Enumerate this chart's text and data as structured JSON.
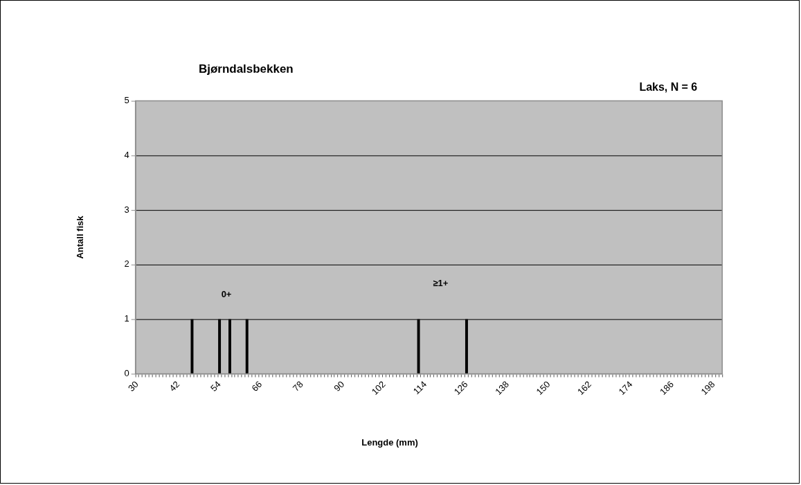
{
  "chart_data": {
    "type": "bar",
    "title": "Bjørndalsbekken",
    "subtitle": "Laks, N = 6",
    "xlabel": "Lengde (mm)",
    "ylabel": "Antall fisk",
    "categories": [
      "30",
      null,
      null,
      null,
      null,
      null,
      null,
      null,
      null,
      null,
      null,
      null,
      "42",
      null,
      null,
      null,
      null,
      null,
      null,
      null,
      null,
      null,
      null,
      null,
      "54",
      null,
      null,
      null,
      null,
      null,
      null,
      null,
      null,
      null,
      null,
      null,
      "66",
      null,
      null,
      null,
      null,
      null,
      null,
      null,
      null,
      null,
      null,
      null,
      "78",
      null,
      null,
      null,
      null,
      null,
      null,
      null,
      null,
      null,
      null,
      null,
      "90",
      null,
      null,
      null,
      null,
      null,
      null,
      null,
      null,
      null,
      null,
      null,
      "102",
      null,
      null,
      null,
      null,
      null,
      null,
      null,
      null,
      null,
      null,
      null,
      "114",
      null,
      null,
      null,
      null,
      null,
      null,
      null,
      null,
      null,
      null,
      null,
      "126",
      null,
      null,
      null,
      null,
      null,
      null,
      null,
      null,
      null,
      null,
      null,
      "138",
      null,
      null,
      null,
      null,
      null,
      null,
      null,
      null,
      null,
      null,
      null,
      "150",
      null,
      null,
      null,
      null,
      null,
      null,
      null,
      null,
      null,
      null,
      null,
      "162",
      null,
      null,
      null,
      null,
      null,
      null,
      null,
      null,
      null,
      null,
      null,
      "174",
      null,
      null,
      null,
      null,
      null,
      null,
      null,
      null,
      null,
      null,
      null,
      "186",
      null,
      null,
      null,
      null,
      null,
      null,
      null,
      null,
      null,
      null,
      null,
      "198",
      null,
      null
    ],
    "values": [
      0,
      0,
      0,
      0,
      0,
      0,
      0,
      0,
      0,
      0,
      0,
      0,
      0,
      0,
      0,
      0,
      1,
      0,
      0,
      0,
      0,
      0,
      0,
      0,
      1,
      0,
      0,
      1,
      0,
      0,
      0,
      0,
      1,
      0,
      0,
      0,
      0,
      0,
      0,
      0,
      0,
      0,
      0,
      0,
      0,
      0,
      0,
      0,
      0,
      0,
      0,
      0,
      0,
      0,
      0,
      0,
      0,
      0,
      0,
      0,
      0,
      0,
      0,
      0,
      0,
      0,
      0,
      0,
      0,
      0,
      0,
      0,
      0,
      0,
      0,
      0,
      0,
      0,
      0,
      0,
      0,
      0,
      1,
      0,
      0,
      0,
      0,
      0,
      0,
      0,
      0,
      0,
      0,
      0,
      0,
      0,
      1,
      0,
      0,
      0,
      0,
      0,
      0,
      0,
      0,
      0,
      0,
      0,
      0,
      0,
      0,
      0,
      0,
      0,
      0,
      0,
      0,
      0,
      0,
      0,
      0,
      0,
      0,
      0,
      0,
      0,
      0,
      0,
      0,
      0,
      0,
      0,
      0,
      0,
      0,
      0,
      0,
      0,
      0,
      0,
      0,
      0,
      0,
      0,
      0,
      0,
      0,
      0,
      0,
      0,
      0,
      0,
      0,
      0,
      0,
      0,
      0,
      0,
      0,
      0,
      0,
      0,
      0,
      0,
      0,
      0,
      0,
      0,
      0,
      0,
      0
    ],
    "color": "#000000",
    "ylim": [
      0,
      5
    ],
    "yticks": [
      0,
      1,
      2,
      3,
      4,
      5
    ],
    "grid": "y",
    "annotations": [
      "0+",
      "≥1+"
    ]
  }
}
